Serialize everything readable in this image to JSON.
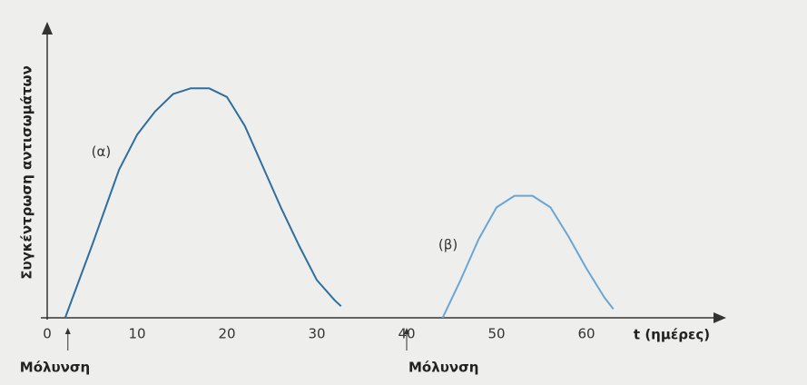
{
  "chart_data": {
    "type": "line",
    "ylabel": "Συγκέντρωση αντισωμάτων",
    "xlabel": "t (ημέρες)",
    "xlim": [
      0,
      75
    ],
    "ylim": [
      0,
      100
    ],
    "xticks": [
      0,
      10,
      20,
      30,
      40,
      50,
      60
    ],
    "grid": false,
    "series": [
      {
        "name": "(α)",
        "color": "#2f6e9e",
        "x": [
          2,
          5,
          8,
          10,
          12,
          14,
          16,
          18,
          20,
          22,
          24,
          26,
          28,
          30,
          32,
          32.7
        ],
        "values": [
          0,
          25,
          51,
          63,
          71,
          77,
          79,
          79,
          76,
          66,
          52,
          38,
          25,
          13,
          6,
          4
        ],
        "label_at": [
          6,
          57
        ]
      },
      {
        "name": "(β)",
        "color": "#6aa6d4",
        "x": [
          44,
          46,
          48,
          50,
          52,
          54,
          56,
          58,
          60,
          62,
          63
        ],
        "values": [
          0,
          13,
          27,
          38,
          42,
          42,
          38,
          28,
          17,
          7,
          3
        ],
        "label_at": [
          44.6,
          25
        ]
      }
    ],
    "annotations": [
      {
        "text": "Μόλυνση",
        "x": 2.3
      },
      {
        "text": "Μόλυνση",
        "x": 40
      }
    ]
  }
}
